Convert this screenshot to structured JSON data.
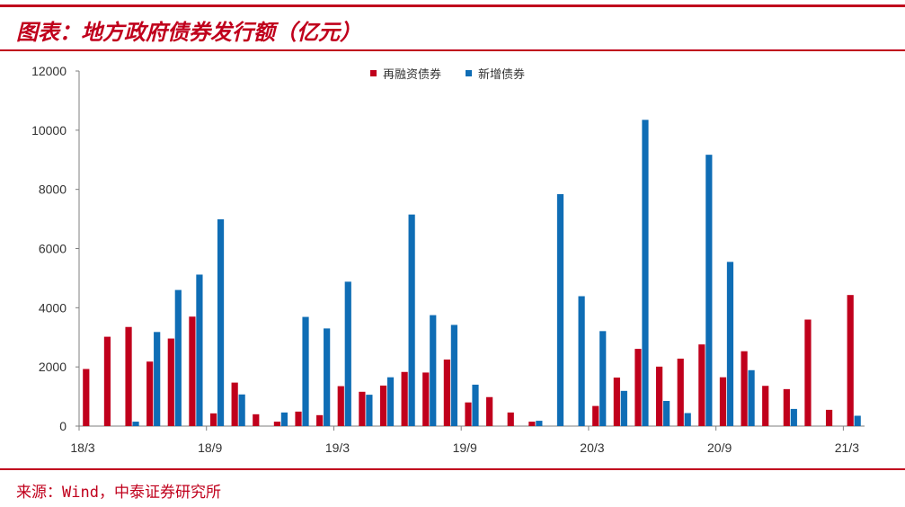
{
  "title": "图表：地方政府债券发行额（亿元）",
  "source": "来源：Wind，中泰证券研究所",
  "colors": {
    "accent": "#c0001c",
    "refinance": "#c0001c",
    "new": "#0f6db5"
  },
  "chart_data": {
    "type": "bar",
    "title": "",
    "xlabel": "",
    "ylabel": "",
    "ylim": [
      0,
      12000
    ],
    "yticks": [
      0,
      2000,
      4000,
      6000,
      8000,
      10000,
      12000
    ],
    "grid": false,
    "legend_position": "top-center",
    "categories": [
      "18/3",
      "18/4",
      "18/5",
      "18/6",
      "18/7",
      "18/8",
      "18/9",
      "18/10",
      "18/11",
      "18/12",
      "19/1",
      "19/2",
      "19/3",
      "19/4",
      "19/5",
      "19/6",
      "19/7",
      "19/8",
      "19/9",
      "19/10",
      "19/11",
      "19/12",
      "20/1",
      "20/2",
      "20/3",
      "20/4",
      "20/5",
      "20/6",
      "20/7",
      "20/8",
      "20/9",
      "20/10",
      "20/11",
      "20/12",
      "21/1",
      "21/2",
      "21/3"
    ],
    "x_tick_labels": [
      "18/3",
      "18/9",
      "19/3",
      "19/9",
      "20/3",
      "20/9",
      "21/3"
    ],
    "series": [
      {
        "name": "再融资债券",
        "color": "#c0001c",
        "values": [
          1930,
          3020,
          3350,
          2180,
          2960,
          3700,
          430,
          1470,
          400,
          150,
          490,
          370,
          1350,
          1160,
          1370,
          1830,
          1810,
          2250,
          800,
          980,
          460,
          150,
          0,
          0,
          680,
          1640,
          2610,
          2010,
          2280,
          2760,
          1650,
          2530,
          1360,
          1250,
          3600,
          550,
          4430
        ]
      },
      {
        "name": "新增债券",
        "color": "#0f6db5",
        "values": [
          0,
          0,
          150,
          3180,
          4600,
          5120,
          6990,
          1070,
          0,
          460,
          3690,
          3300,
          4880,
          1060,
          1650,
          7150,
          3750,
          3420,
          1400,
          0,
          0,
          180,
          7840,
          4390,
          3210,
          1190,
          10350,
          850,
          440,
          9170,
          5550,
          1890,
          0,
          580,
          0,
          0,
          350
        ]
      }
    ]
  }
}
